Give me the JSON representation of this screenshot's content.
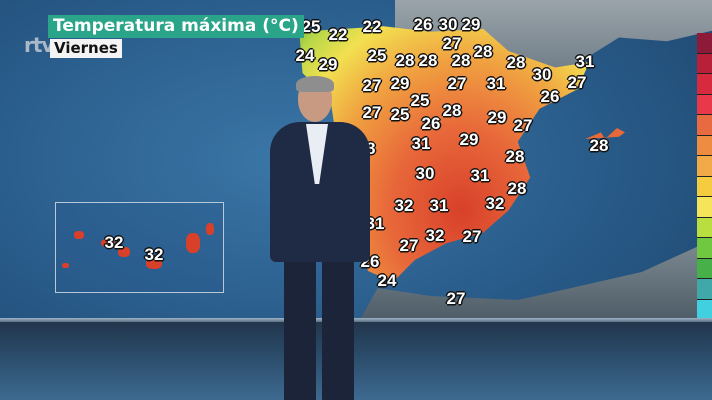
{
  "broadcast": {
    "logo": "rtve",
    "title": "Temperatura máxima (°C)",
    "day": "Viernes"
  },
  "map": {
    "temperatures_peninsula": [
      25,
      22,
      22,
      26,
      30,
      29,
      24,
      29,
      25,
      28,
      28,
      27,
      28,
      28,
      28,
      30,
      31,
      27,
      29,
      27,
      31,
      27,
      26,
      25,
      27,
      25,
      28,
      26,
      29,
      27,
      28,
      31,
      29,
      28,
      30,
      31,
      28,
      32,
      31,
      32,
      31,
      27,
      32,
      27,
      26,
      24,
      27
    ],
    "temperature_baleares": 28,
    "temperatures_canarias": [
      32,
      32
    ]
  },
  "legend": {
    "colors": [
      "#8e1a3a",
      "#b8203a",
      "#d82a3e",
      "#e8384a",
      "#e86a40",
      "#ee8c42",
      "#f2aa48",
      "#f5cc40",
      "#f6e45a",
      "#b8de40",
      "#70c840",
      "#48b048",
      "#40a8a8",
      "#40d0e0"
    ]
  }
}
